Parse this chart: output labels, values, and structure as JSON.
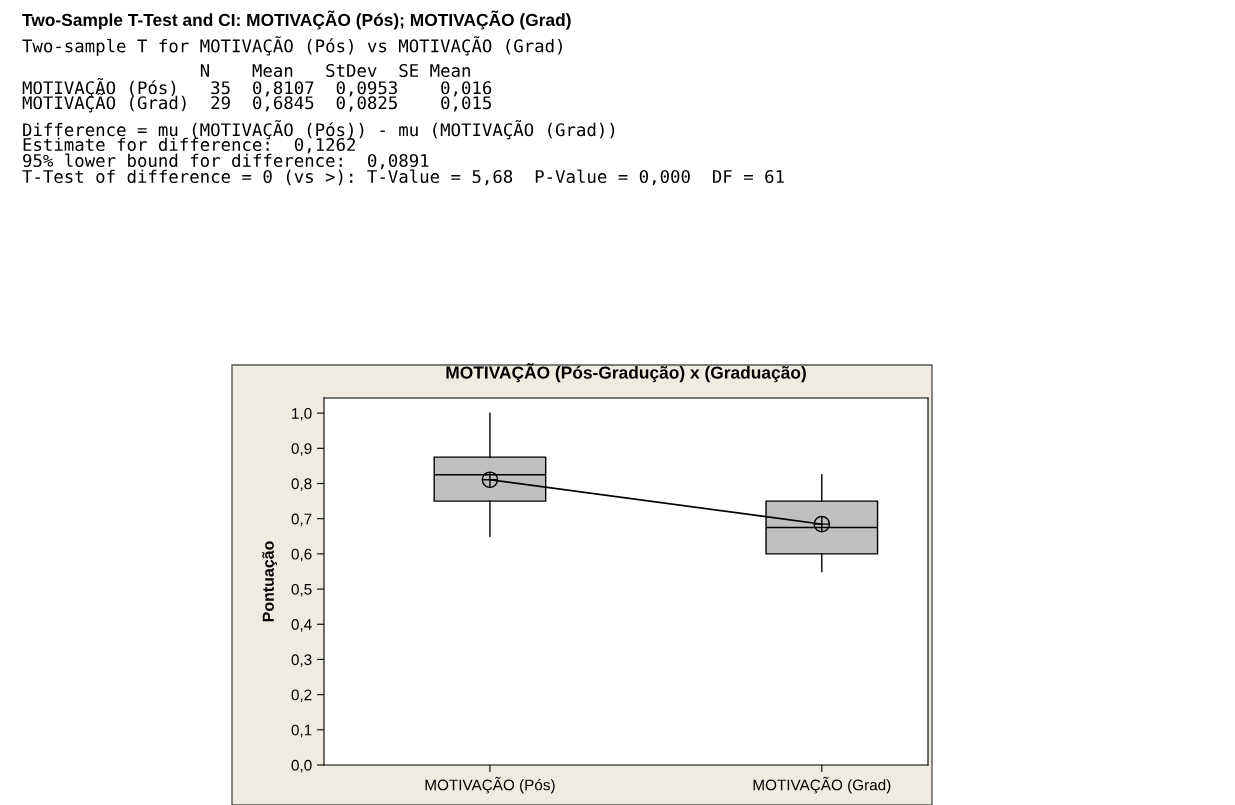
{
  "chart_data": {
    "type": "box",
    "title": "MOTIVAÇÃO (Pós-Gradução) x (Graduação)",
    "ylabel": "Pontuação",
    "categories": [
      "MOTIVAÇÃO (Pós)",
      "MOTIVAÇÃO (Grad)"
    ],
    "boxes": [
      {
        "low": 0.65,
        "q1": 0.75,
        "median": 0.825,
        "q3": 0.875,
        "high": 1.0,
        "mean": 0.8107
      },
      {
        "low": 0.55,
        "q1": 0.6,
        "median": 0.675,
        "q3": 0.75,
        "high": 0.825,
        "mean": 0.6845
      }
    ],
    "series": [
      {
        "type": "line",
        "color": "#000000",
        "values": [
          0.8107,
          0.6845
        ]
      }
    ],
    "color": "#c0c0c0",
    "ylim": [
      0,
      1.043
    ],
    "yticks": [
      {
        "value": 0,
        "label": "0,0"
      },
      {
        "value": 0.1,
        "label": "0,1"
      },
      {
        "value": 0.2,
        "label": "0,2"
      },
      {
        "value": 0.3,
        "label": "0,3"
      },
      {
        "value": 0.4,
        "label": "0,4"
      },
      {
        "value": 0.5,
        "label": "0,5"
      },
      {
        "value": 0.6,
        "label": "0,6"
      },
      {
        "value": 0.7,
        "label": "0,7"
      },
      {
        "value": 0.8,
        "label": "0,8"
      },
      {
        "value": 0.9,
        "label": "0,9"
      },
      {
        "value": 1.0,
        "label": "1,0"
      }
    ],
    "grid": false,
    "annotations": [
      "Two-Sample T-Test and CI: MOTIVAÇÃO (Pós); MOTIVAÇÃO (Grad)",
      "Two-sample T for MOTIVAÇÃO (Pós) vs MOTIVAÇÃO (Grad)",
      "                 N    Mean   StDev  SE Mean",
      "MOTIVAÇÃO (Pós)   35  0,8107  0,0953    0,016",
      "MOTIVAÇÃO (Grad)  29  0,6845  0,0825    0,015",
      "Difference = mu (MOTIVAÇÃO (Pós)) - mu (MOTIVAÇÃO (Grad))",
      "Estimate for difference:  0,1262",
      "95% lower bound for difference:  0,0891",
      "T-Test of difference = 0 (vs >): T-Value = 5,68  P-Value = 0,000  DF = 61"
    ]
  }
}
